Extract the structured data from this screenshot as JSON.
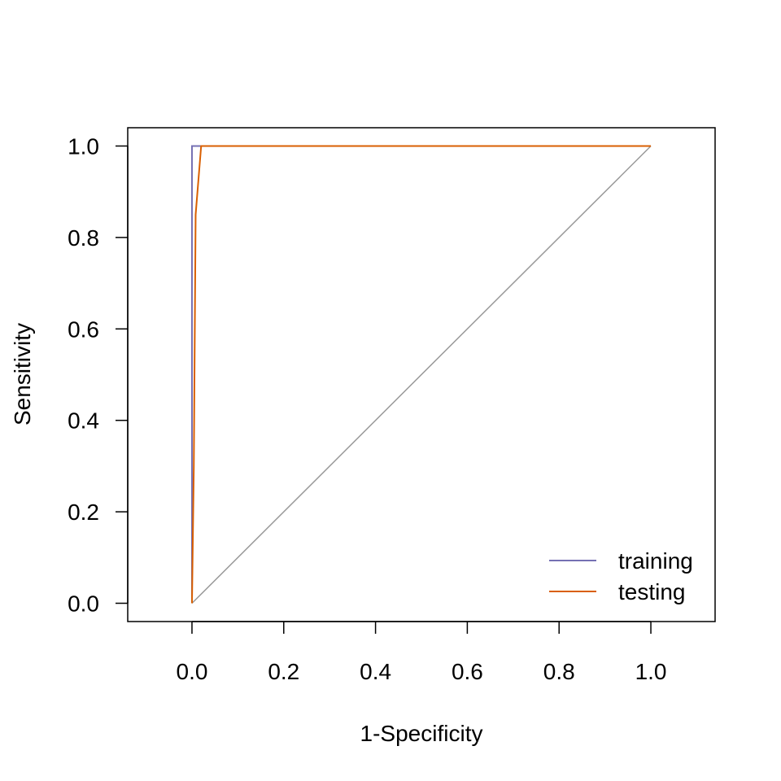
{
  "chart_data": {
    "type": "line",
    "xlabel": "1-Specificity",
    "ylabel": "Sensitivity",
    "xlim": [
      -0.14,
      1.14
    ],
    "ylim": [
      -0.04,
      1.04
    ],
    "x_ticks": [
      0.0,
      0.2,
      0.4,
      0.6,
      0.8,
      1.0
    ],
    "x_tick_labels": [
      "0.0",
      "0.2",
      "0.4",
      "0.6",
      "0.8",
      "1.0"
    ],
    "y_ticks": [
      0.0,
      0.2,
      0.4,
      0.6,
      0.8,
      1.0
    ],
    "y_tick_labels": [
      "0.0",
      "0.2",
      "0.4",
      "0.6",
      "0.8",
      "1.0"
    ],
    "grid": false,
    "legend_position": "bottom-right",
    "series": [
      {
        "name": "training",
        "color": "#7570b3",
        "x": [
          0.0,
          0.0,
          1.0
        ],
        "y": [
          0.0,
          1.0,
          1.0
        ]
      },
      {
        "name": "testing",
        "color": "#d95f02",
        "x": [
          0.0,
          0.004,
          0.008,
          0.02,
          1.0
        ],
        "y": [
          0.0,
          0.3,
          0.85,
          1.0,
          1.0
        ]
      }
    ],
    "reference_line": {
      "color": "#999999",
      "x": [
        0.0,
        1.0
      ],
      "y": [
        0.0,
        1.0
      ]
    }
  }
}
